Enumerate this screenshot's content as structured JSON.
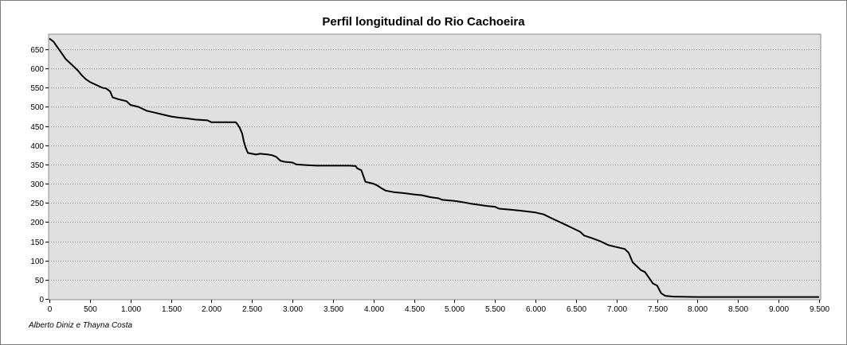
{
  "chart_data": {
    "type": "line",
    "title": "Perfil longitudinal do Rio Cachoeira",
    "credit": "Alberto Diniz e Thayna Costa",
    "xlabel": "",
    "ylabel": "",
    "xlim": [
      0,
      9500
    ],
    "ylim": [
      0,
      680
    ],
    "x_ticks": [
      {
        "value": 0,
        "label": "0"
      },
      {
        "value": 500,
        "label": "500"
      },
      {
        "value": 1000,
        "label": "1.000"
      },
      {
        "value": 1500,
        "label": "1.500"
      },
      {
        "value": 2000,
        "label": "2.000"
      },
      {
        "value": 2500,
        "label": "2.500"
      },
      {
        "value": 3000,
        "label": "3.000"
      },
      {
        "value": 3500,
        "label": "3.500"
      },
      {
        "value": 4000,
        "label": "4.000"
      },
      {
        "value": 4500,
        "label": "4.500"
      },
      {
        "value": 5000,
        "label": "5.000"
      },
      {
        "value": 5500,
        "label": "5.500"
      },
      {
        "value": 6000,
        "label": "6.000"
      },
      {
        "value": 6500,
        "label": "6.500"
      },
      {
        "value": 7000,
        "label": "7.000"
      },
      {
        "value": 7500,
        "label": "7.500"
      },
      {
        "value": 8000,
        "label": "8.000"
      },
      {
        "value": 8500,
        "label": "8.500"
      },
      {
        "value": 9000,
        "label": "9.000"
      },
      {
        "value": 9500,
        "label": "9.500"
      }
    ],
    "y_ticks": [
      {
        "value": 0,
        "label": "0"
      },
      {
        "value": 50,
        "label": "50"
      },
      {
        "value": 100,
        "label": "100"
      },
      {
        "value": 150,
        "label": "150"
      },
      {
        "value": 200,
        "label": "200"
      },
      {
        "value": 250,
        "label": "250"
      },
      {
        "value": 300,
        "label": "300"
      },
      {
        "value": 350,
        "label": "350"
      },
      {
        "value": 400,
        "label": "400"
      },
      {
        "value": 450,
        "label": "450"
      },
      {
        "value": 500,
        "label": "500"
      },
      {
        "value": 550,
        "label": "550"
      },
      {
        "value": 600,
        "label": "600"
      },
      {
        "value": 650,
        "label": "650"
      }
    ],
    "grid": {
      "horizontal": true,
      "vertical": false
    },
    "colors": {
      "plot_background": "#e0e0e0",
      "line": "#000000",
      "grid": "#8c8c8c"
    },
    "series": [
      {
        "points": [
          [
            0,
            678
          ],
          [
            50,
            670
          ],
          [
            100,
            655
          ],
          [
            150,
            640
          ],
          [
            200,
            625
          ],
          [
            250,
            615
          ],
          [
            300,
            605
          ],
          [
            350,
            595
          ],
          [
            400,
            582
          ],
          [
            450,
            572
          ],
          [
            500,
            565
          ],
          [
            550,
            560
          ],
          [
            600,
            555
          ],
          [
            650,
            550
          ],
          [
            700,
            548
          ],
          [
            750,
            540
          ],
          [
            780,
            525
          ],
          [
            850,
            520
          ],
          [
            950,
            515
          ],
          [
            1000,
            505
          ],
          [
            1100,
            500
          ],
          [
            1150,
            495
          ],
          [
            1200,
            490
          ],
          [
            1300,
            485
          ],
          [
            1400,
            480
          ],
          [
            1500,
            475
          ],
          [
            1600,
            472
          ],
          [
            1700,
            470
          ],
          [
            1800,
            467
          ],
          [
            1950,
            465
          ],
          [
            2000,
            460
          ],
          [
            2150,
            460
          ],
          [
            2300,
            460
          ],
          [
            2320,
            455
          ],
          [
            2350,
            445
          ],
          [
            2380,
            430
          ],
          [
            2400,
            410
          ],
          [
            2420,
            395
          ],
          [
            2450,
            380
          ],
          [
            2500,
            378
          ],
          [
            2550,
            376
          ],
          [
            2600,
            378
          ],
          [
            2650,
            377
          ],
          [
            2700,
            376
          ],
          [
            2750,
            374
          ],
          [
            2800,
            370
          ],
          [
            2850,
            360
          ],
          [
            2900,
            357
          ],
          [
            3000,
            355
          ],
          [
            3050,
            350
          ],
          [
            3200,
            348
          ],
          [
            3300,
            347
          ],
          [
            3500,
            347
          ],
          [
            3700,
            347
          ],
          [
            3780,
            346
          ],
          [
            3800,
            340
          ],
          [
            3850,
            335
          ],
          [
            3900,
            305
          ],
          [
            4000,
            300
          ],
          [
            4050,
            295
          ],
          [
            4100,
            288
          ],
          [
            4150,
            282
          ],
          [
            4250,
            278
          ],
          [
            4400,
            275
          ],
          [
            4500,
            272
          ],
          [
            4600,
            270
          ],
          [
            4700,
            265
          ],
          [
            4800,
            262
          ],
          [
            4850,
            258
          ],
          [
            5000,
            255
          ],
          [
            5100,
            252
          ],
          [
            5200,
            248
          ],
          [
            5300,
            245
          ],
          [
            5400,
            242
          ],
          [
            5500,
            240
          ],
          [
            5550,
            235
          ],
          [
            5700,
            232
          ],
          [
            5800,
            230
          ],
          [
            6000,
            225
          ],
          [
            6100,
            220
          ],
          [
            6200,
            210
          ],
          [
            6300,
            200
          ],
          [
            6400,
            190
          ],
          [
            6450,
            185
          ],
          [
            6550,
            175
          ],
          [
            6600,
            165
          ],
          [
            6700,
            158
          ],
          [
            6800,
            150
          ],
          [
            6900,
            140
          ],
          [
            7000,
            135
          ],
          [
            7100,
            130
          ],
          [
            7150,
            120
          ],
          [
            7200,
            95
          ],
          [
            7250,
            85
          ],
          [
            7300,
            75
          ],
          [
            7350,
            70
          ],
          [
            7400,
            55
          ],
          [
            7450,
            40
          ],
          [
            7500,
            35
          ],
          [
            7550,
            15
          ],
          [
            7600,
            8
          ],
          [
            7700,
            6
          ],
          [
            8000,
            5
          ],
          [
            9000,
            5
          ],
          [
            9500,
            5
          ]
        ]
      }
    ]
  }
}
